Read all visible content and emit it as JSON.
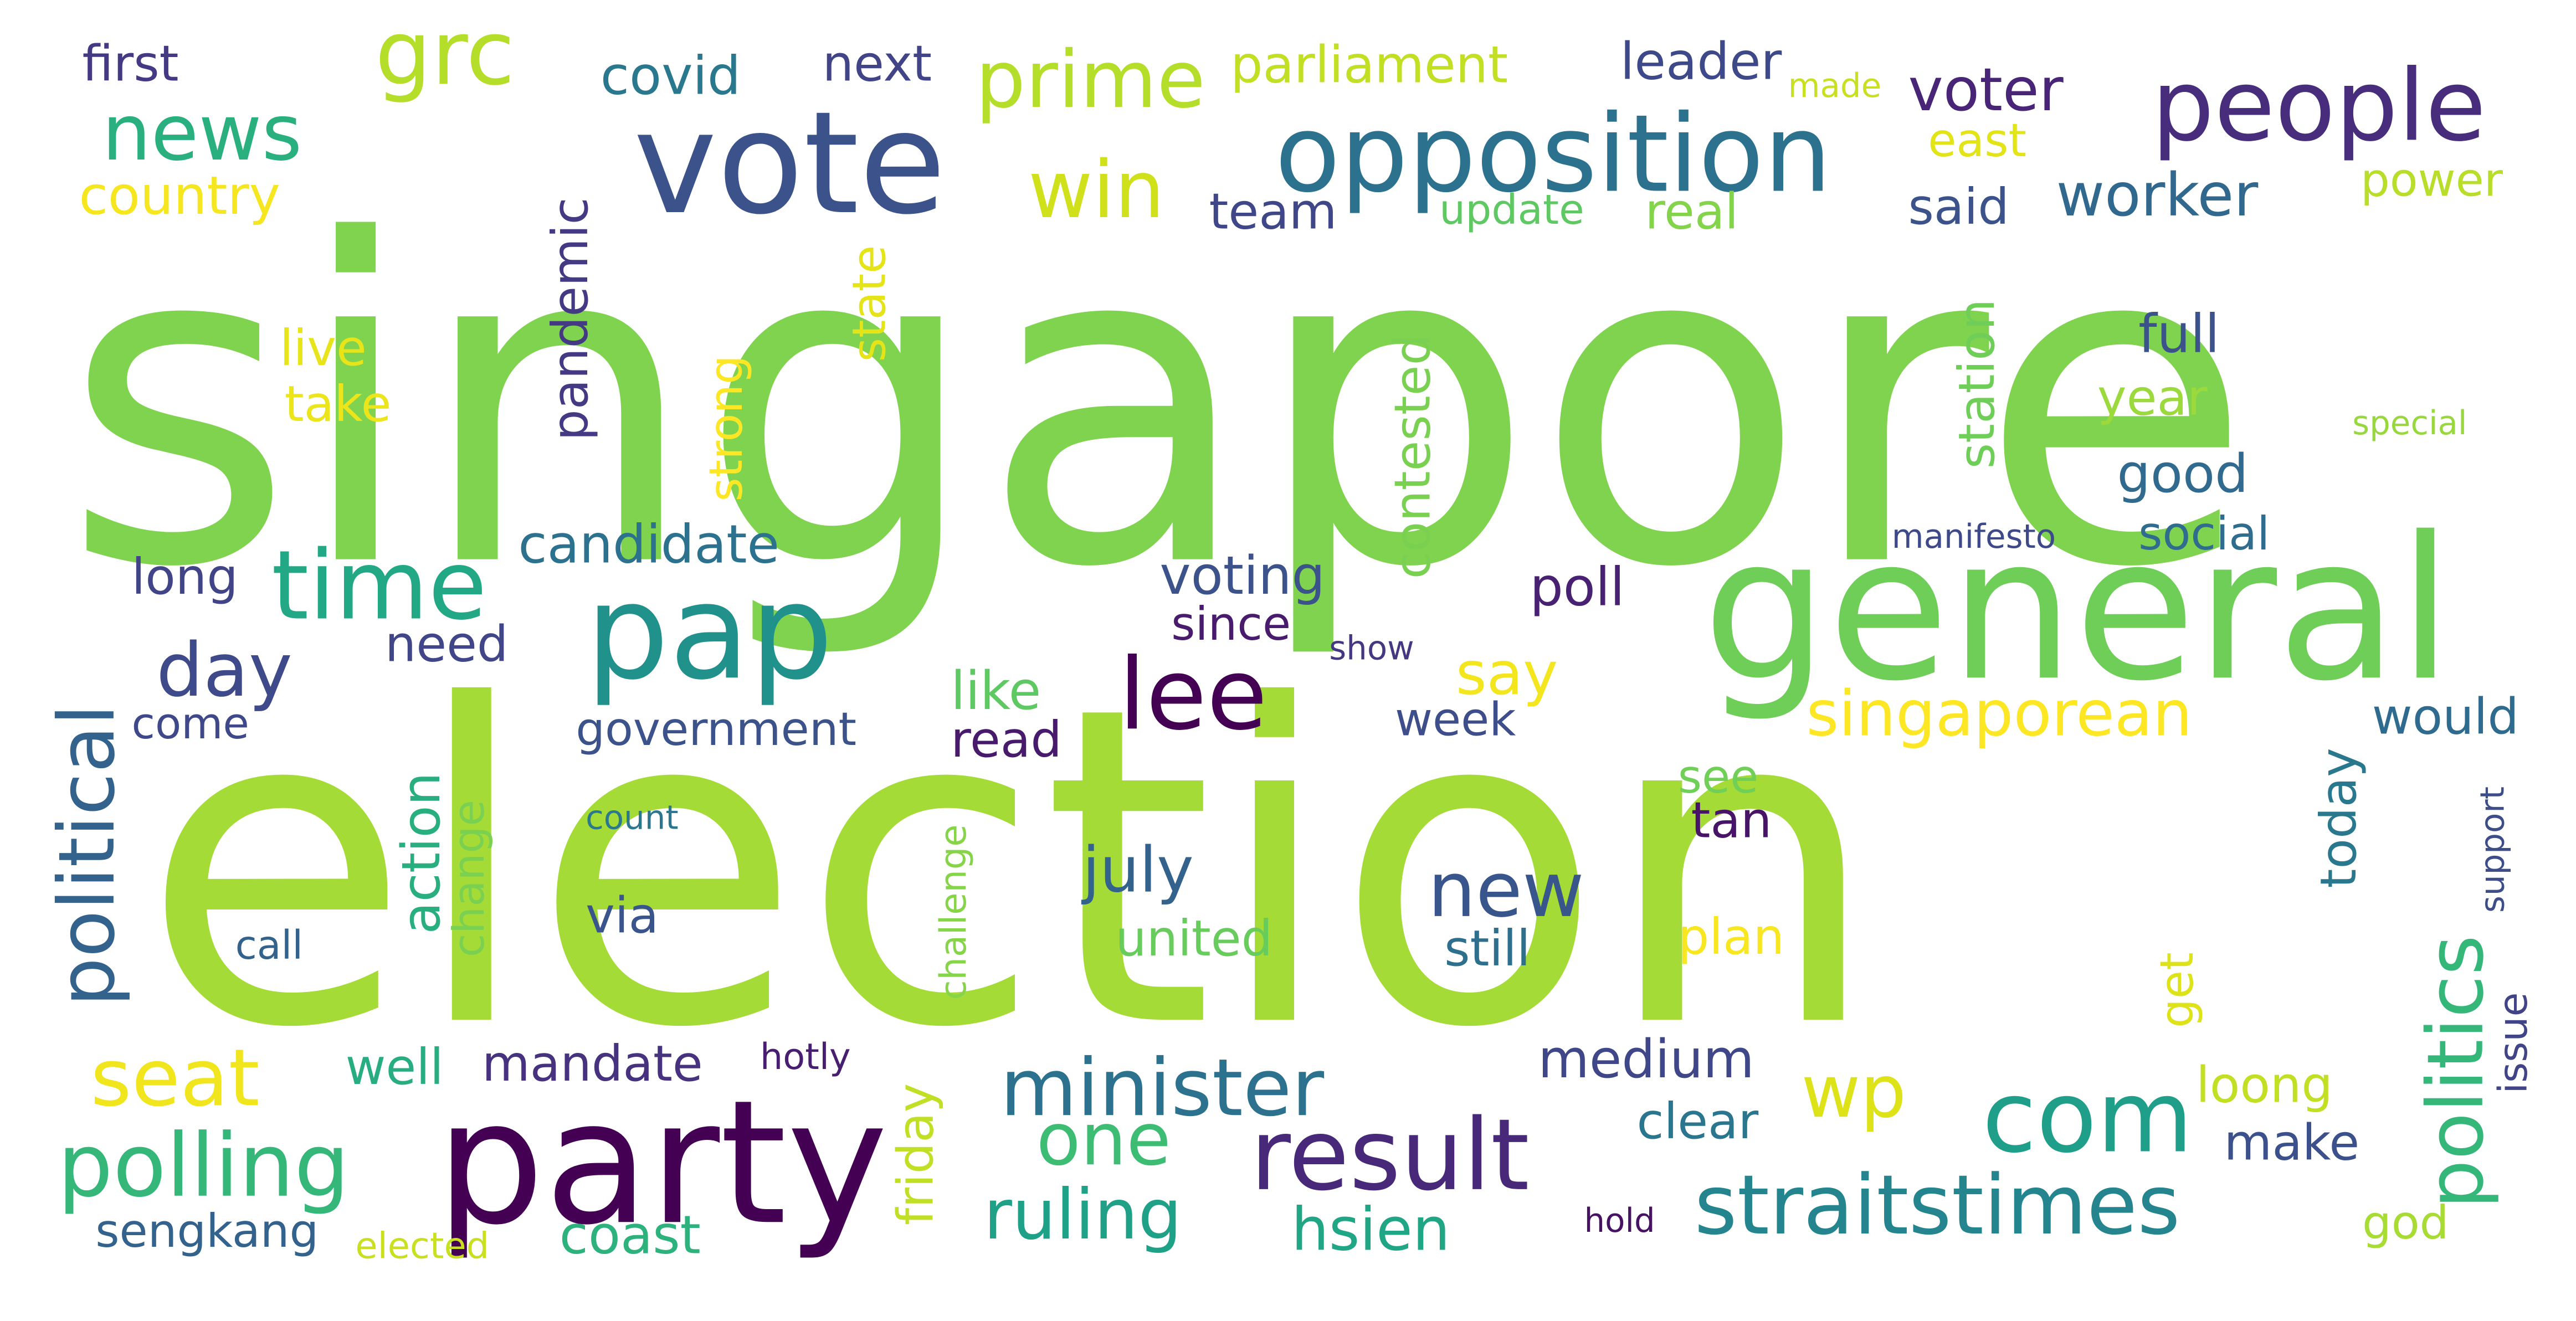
{
  "words": [
    {
      "text": "singapore",
      "color": "#7fd34e"
    },
    {
      "text": "election",
      "color": "#a5db36"
    },
    {
      "text": "general",
      "color": "#6ece58"
    },
    {
      "text": "party",
      "color": "#440154"
    },
    {
      "text": "vote",
      "color": "#3b528b"
    },
    {
      "text": "opposition",
      "color": "#2c728e"
    },
    {
      "text": "people",
      "color": "#472d7b"
    },
    {
      "text": "pap",
      "color": "#21918c"
    },
    {
      "text": "time",
      "color": "#22a884"
    },
    {
      "text": "news",
      "color": "#2ab07f"
    },
    {
      "text": "grc",
      "color": "#b5de2b"
    },
    {
      "text": "prime",
      "color": "#b5de2b"
    },
    {
      "text": "lee",
      "color": "#440154"
    },
    {
      "text": "result",
      "color": "#482878"
    },
    {
      "text": "com",
      "color": "#1f9e89"
    },
    {
      "text": "minister",
      "color": "#2c728e"
    },
    {
      "text": "straitstimes",
      "color": "#25858e"
    },
    {
      "text": "polling",
      "color": "#35b779"
    },
    {
      "text": "politics",
      "color": "#35b779"
    },
    {
      "text": "political",
      "color": "#33638d"
    },
    {
      "text": "seat",
      "color": "#f1e51d"
    },
    {
      "text": "day",
      "color": "#3e4a89"
    },
    {
      "text": "win",
      "color": "#d0e11c"
    },
    {
      "text": "wp",
      "color": "#dde318"
    },
    {
      "text": "one",
      "color": "#3dbc74"
    },
    {
      "text": "new",
      "color": "#39568c"
    },
    {
      "text": "ruling",
      "color": "#1fa188"
    },
    {
      "text": "singaporean",
      "color": "#fde725"
    },
    {
      "text": "voter",
      "color": "#482576"
    },
    {
      "text": "worker",
      "color": "#31688e"
    },
    {
      "text": "candidate",
      "color": "#2c728e"
    },
    {
      "text": "july",
      "color": "#33638d"
    },
    {
      "text": "hsien",
      "color": "#21a685"
    },
    {
      "text": "coast",
      "color": "#2db27d"
    },
    {
      "text": "first",
      "color": "#443983"
    },
    {
      "text": "covid",
      "color": "#2a788e"
    },
    {
      "text": "next",
      "color": "#414487"
    },
    {
      "text": "parliament",
      "color": "#c2df23"
    },
    {
      "text": "leader",
      "color": "#3e4989"
    },
    {
      "text": "made",
      "color": "#c8e020"
    },
    {
      "text": "east",
      "color": "#e2e418"
    },
    {
      "text": "country",
      "color": "#f6e620"
    },
    {
      "text": "team",
      "color": "#3f4788"
    },
    {
      "text": "update",
      "color": "#5ec962"
    },
    {
      "text": "real",
      "color": "#84d44b"
    },
    {
      "text": "said",
      "color": "#3b528b"
    },
    {
      "text": "power",
      "color": "#b8de29"
    },
    {
      "text": "pandemic",
      "color": "#443a83"
    },
    {
      "text": "state",
      "color": "#e5e419"
    },
    {
      "text": "live",
      "color": "#e7e419"
    },
    {
      "text": "take",
      "color": "#ece51b"
    },
    {
      "text": "strong",
      "color": "#fde725"
    },
    {
      "text": "contested",
      "color": "#7ad151"
    },
    {
      "text": "station",
      "color": "#6ece58"
    },
    {
      "text": "full",
      "color": "#3b528b"
    },
    {
      "text": "year",
      "color": "#9bd93c"
    },
    {
      "text": "special",
      "color": "#98d83e"
    },
    {
      "text": "good",
      "color": "#306a8e"
    },
    {
      "text": "manifesto",
      "color": "#3e4989"
    },
    {
      "text": "social",
      "color": "#2f6c8e"
    },
    {
      "text": "long",
      "color": "#414487"
    },
    {
      "text": "voting",
      "color": "#3b528b"
    },
    {
      "text": "poll",
      "color": "#482173"
    },
    {
      "text": "since",
      "color": "#481b6d"
    },
    {
      "text": "show",
      "color": "#453781"
    },
    {
      "text": "say",
      "color": "#f4e61e"
    },
    {
      "text": "need",
      "color": "#404688"
    },
    {
      "text": "come",
      "color": "#3f4889"
    },
    {
      "text": "government",
      "color": "#3b528b"
    },
    {
      "text": "like",
      "color": "#5ec962"
    },
    {
      "text": "read",
      "color": "#481a6c"
    },
    {
      "text": "week",
      "color": "#3d4e8a"
    },
    {
      "text": "would",
      "color": "#2f6b8e"
    },
    {
      "text": "action",
      "color": "#29af7f"
    },
    {
      "text": "change",
      "color": "#7ad151"
    },
    {
      "text": "count",
      "color": "#2a788e"
    },
    {
      "text": "call",
      "color": "#33638d"
    },
    {
      "text": "via",
      "color": "#3a548c"
    },
    {
      "text": "challenge",
      "color": "#86d549"
    },
    {
      "text": "see",
      "color": "#70cf57"
    },
    {
      "text": "tan",
      "color": "#481467"
    },
    {
      "text": "plan",
      "color": "#f8e621"
    },
    {
      "text": "today",
      "color": "#2a788e"
    },
    {
      "text": "support",
      "color": "#3d4d8a"
    },
    {
      "text": "united",
      "color": "#67cc5c"
    },
    {
      "text": "still",
      "color": "#2e6f8e"
    },
    {
      "text": "get",
      "color": "#dde318"
    },
    {
      "text": "issue",
      "color": "#414487"
    },
    {
      "text": "well",
      "color": "#27ad81"
    },
    {
      "text": "mandate",
      "color": "#46327e"
    },
    {
      "text": "hotly",
      "color": "#481f70"
    },
    {
      "text": "friday",
      "color": "#c0df25"
    },
    {
      "text": "medium",
      "color": "#3f4788"
    },
    {
      "text": "clear",
      "color": "#2a768e"
    },
    {
      "text": "loong",
      "color": "#c2df23"
    },
    {
      "text": "make",
      "color": "#3c508b"
    },
    {
      "text": "sengkang",
      "color": "#33638d"
    },
    {
      "text": "elected",
      "color": "#c8e020"
    },
    {
      "text": "hold",
      "color": "#471164"
    },
    {
      "text": "god",
      "color": "#a8db34"
    }
  ]
}
